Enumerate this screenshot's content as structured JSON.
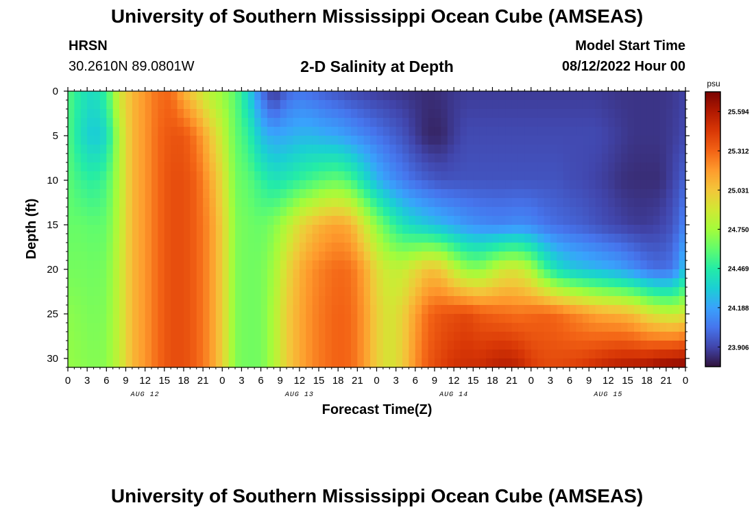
{
  "header": {
    "title": "University of Southern Mississippi Ocean Cube (AMSEAS)",
    "station": "HRSN",
    "coords": "30.2610N  89.0801W",
    "subtitle": "2-D Salinity at Depth",
    "start_label": "Model Start Time",
    "start_value": "08/12/2022 Hour 00"
  },
  "footer": {
    "title": "University of Southern Mississippi Ocean Cube (AMSEAS)"
  },
  "chart_data": {
    "type": "heatmap",
    "title": "2-D Salinity at Depth",
    "xlabel": "Forecast Time(Z)",
    "ylabel": "Depth (ft)",
    "x_range_hours": [
      0,
      96
    ],
    "y_range_ft": [
      0,
      31
    ],
    "y_inverted": true,
    "x_ticks": [
      {
        "hour": 0,
        "label": "0"
      },
      {
        "hour": 3,
        "label": "3"
      },
      {
        "hour": 6,
        "label": "6"
      },
      {
        "hour": 9,
        "label": "9"
      },
      {
        "hour": 12,
        "label": "12"
      },
      {
        "hour": 15,
        "label": "15"
      },
      {
        "hour": 18,
        "label": "18"
      },
      {
        "hour": 21,
        "label": "21"
      },
      {
        "hour": 24,
        "label": "0"
      },
      {
        "hour": 27,
        "label": "3"
      },
      {
        "hour": 30,
        "label": "6"
      },
      {
        "hour": 33,
        "label": "9"
      },
      {
        "hour": 36,
        "label": "12"
      },
      {
        "hour": 39,
        "label": "15"
      },
      {
        "hour": 42,
        "label": "18"
      },
      {
        "hour": 45,
        "label": "21"
      },
      {
        "hour": 48,
        "label": "0"
      },
      {
        "hour": 51,
        "label": "3"
      },
      {
        "hour": 54,
        "label": "6"
      },
      {
        "hour": 57,
        "label": "9"
      },
      {
        "hour": 60,
        "label": "12"
      },
      {
        "hour": 63,
        "label": "15"
      },
      {
        "hour": 66,
        "label": "18"
      },
      {
        "hour": 69,
        "label": "21"
      },
      {
        "hour": 72,
        "label": "0"
      },
      {
        "hour": 75,
        "label": "3"
      },
      {
        "hour": 78,
        "label": "6"
      },
      {
        "hour": 81,
        "label": "9"
      },
      {
        "hour": 84,
        "label": "12"
      },
      {
        "hour": 87,
        "label": "15"
      },
      {
        "hour": 90,
        "label": "18"
      },
      {
        "hour": 93,
        "label": "21"
      },
      {
        "hour": 96,
        "label": "0"
      }
    ],
    "date_labels": [
      {
        "hour": 12,
        "label": "AUG 12"
      },
      {
        "hour": 36,
        "label": "AUG 13"
      },
      {
        "hour": 60,
        "label": "AUG 14"
      },
      {
        "hour": 84,
        "label": "AUG 15"
      }
    ],
    "y_ticks": [
      0,
      5,
      10,
      15,
      20,
      25,
      30
    ],
    "colorbar": {
      "unit": "psu",
      "min": 23.765,
      "max": 25.735,
      "ticks": [
        25.594,
        25.312,
        25.031,
        24.75,
        24.469,
        24.188,
        23.906
      ],
      "tick_labels": [
        "25.594",
        "25.312",
        "25.031",
        "24.750",
        "24.469",
        "24.188",
        "23.906"
      ],
      "colormap": [
        "#30123b",
        "#4145ab",
        "#4675ed",
        "#39a2fc",
        "#1bcfd4",
        "#24eca6",
        "#61fc6c",
        "#a4fc3b",
        "#d1e834",
        "#f3c63a",
        "#fe9b2d",
        "#f36315",
        "#d93806",
        "#b11901",
        "#7a0402"
      ]
    },
    "value_description": "Salinity (psu) by forecast hour (rows) and depth in ft (columns)",
    "depths_ft": [
      0,
      5,
      10,
      15,
      20,
      25,
      31
    ],
    "profiles": [
      {
        "hour": 0,
        "values": [
          24.58,
          24.58,
          24.6,
          24.62,
          24.65,
          24.7,
          24.72
        ]
      },
      {
        "hour": 2,
        "values": [
          24.45,
          24.4,
          24.52,
          24.62,
          24.65,
          24.68,
          24.7
        ]
      },
      {
        "hour": 4,
        "values": [
          24.38,
          24.3,
          24.48,
          24.6,
          24.64,
          24.66,
          24.68
        ]
      },
      {
        "hour": 6,
        "values": [
          24.52,
          24.38,
          24.55,
          24.62,
          24.66,
          24.68,
          24.7
        ]
      },
      {
        "hour": 8,
        "values": [
          24.9,
          24.8,
          24.8,
          24.82,
          24.85,
          24.85,
          24.85
        ]
      },
      {
        "hour": 10,
        "values": [
          25.08,
          25.08,
          25.08,
          25.08,
          25.08,
          25.08,
          25.08
        ]
      },
      {
        "hour": 12,
        "values": [
          25.18,
          25.18,
          25.18,
          25.18,
          25.18,
          25.18,
          25.18
        ]
      },
      {
        "hour": 14,
        "values": [
          25.28,
          25.3,
          25.3,
          25.3,
          25.3,
          25.3,
          25.3
        ]
      },
      {
        "hour": 16,
        "values": [
          25.3,
          25.36,
          25.38,
          25.38,
          25.38,
          25.38,
          25.38
        ]
      },
      {
        "hour": 18,
        "values": [
          25.1,
          25.36,
          25.38,
          25.38,
          25.38,
          25.38,
          25.38
        ]
      },
      {
        "hour": 20,
        "values": [
          24.95,
          25.25,
          25.32,
          25.32,
          25.32,
          25.32,
          25.32
        ]
      },
      {
        "hour": 22,
        "values": [
          24.8,
          25.05,
          25.15,
          25.2,
          25.2,
          25.2,
          25.2
        ]
      },
      {
        "hour": 24,
        "values": [
          24.72,
          24.85,
          24.95,
          25.0,
          25.0,
          25.0,
          25.0
        ]
      },
      {
        "hour": 26,
        "values": [
          24.6,
          24.62,
          24.65,
          24.68,
          24.68,
          24.68,
          24.68
        ]
      },
      {
        "hour": 28,
        "values": [
          24.35,
          24.5,
          24.6,
          24.64,
          24.64,
          24.64,
          24.64
        ]
      },
      {
        "hour": 30,
        "values": [
          24.05,
          24.28,
          24.5,
          24.62,
          24.65,
          24.65,
          24.65
        ]
      },
      {
        "hour": 32,
        "values": [
          23.85,
          24.2,
          24.42,
          24.68,
          24.75,
          24.78,
          24.78
        ]
      },
      {
        "hour": 34,
        "values": [
          24.0,
          24.22,
          24.45,
          24.8,
          24.95,
          25.0,
          25.0
        ]
      },
      {
        "hour": 36,
        "values": [
          24.05,
          24.25,
          24.5,
          24.95,
          25.1,
          25.12,
          25.12
        ]
      },
      {
        "hour": 38,
        "values": [
          24.02,
          24.25,
          24.55,
          25.05,
          25.2,
          25.22,
          25.22
        ]
      },
      {
        "hour": 40,
        "values": [
          23.98,
          24.22,
          24.6,
          25.12,
          25.26,
          25.28,
          25.28
        ]
      },
      {
        "hour": 42,
        "values": [
          23.95,
          24.2,
          24.62,
          25.15,
          25.3,
          25.32,
          25.32
        ]
      },
      {
        "hour": 44,
        "values": [
          23.92,
          24.15,
          24.55,
          25.1,
          25.28,
          25.3,
          25.3
        ]
      },
      {
        "hour": 46,
        "values": [
          23.9,
          24.1,
          24.4,
          24.9,
          25.15,
          25.18,
          25.18
        ]
      },
      {
        "hour": 48,
        "values": [
          23.88,
          24.05,
          24.25,
          24.7,
          24.95,
          25.0,
          25.0
        ]
      },
      {
        "hour": 50,
        "values": [
          23.87,
          24.0,
          24.15,
          24.55,
          24.85,
          24.9,
          24.9
        ]
      },
      {
        "hour": 52,
        "values": [
          23.86,
          23.95,
          24.08,
          24.42,
          24.85,
          24.98,
          25.0
        ]
      },
      {
        "hour": 54,
        "values": [
          23.85,
          23.88,
          24.02,
          24.35,
          24.95,
          25.15,
          25.2
        ]
      },
      {
        "hour": 56,
        "values": [
          23.84,
          23.82,
          23.98,
          24.3,
          25.05,
          25.3,
          25.35
        ]
      },
      {
        "hour": 58,
        "values": [
          23.85,
          23.82,
          23.95,
          24.25,
          25.02,
          25.36,
          25.42
        ]
      },
      {
        "hour": 60,
        "values": [
          23.87,
          23.88,
          23.95,
          24.2,
          24.85,
          25.38,
          25.48
        ]
      },
      {
        "hour": 62,
        "values": [
          23.88,
          23.92,
          23.95,
          24.15,
          24.72,
          25.4,
          25.5
        ]
      },
      {
        "hour": 64,
        "values": [
          23.88,
          23.92,
          23.95,
          24.12,
          24.7,
          25.35,
          25.5
        ]
      },
      {
        "hour": 66,
        "values": [
          23.88,
          23.92,
          23.95,
          24.1,
          24.8,
          25.32,
          25.55
        ]
      },
      {
        "hour": 68,
        "values": [
          23.88,
          23.92,
          23.95,
          24.1,
          24.9,
          25.3,
          25.58
        ]
      },
      {
        "hour": 70,
        "values": [
          23.88,
          23.92,
          23.95,
          24.12,
          24.9,
          25.28,
          25.55
        ]
      },
      {
        "hour": 72,
        "values": [
          23.88,
          23.92,
          23.95,
          24.1,
          24.78,
          25.3,
          25.45
        ]
      },
      {
        "hour": 74,
        "values": [
          23.88,
          23.92,
          23.95,
          24.05,
          24.55,
          25.32,
          25.4
        ]
      },
      {
        "hour": 76,
        "values": [
          23.88,
          23.92,
          23.95,
          24.02,
          24.4,
          25.3,
          25.4
        ]
      },
      {
        "hour": 78,
        "values": [
          23.88,
          23.92,
          23.93,
          24.0,
          24.32,
          25.25,
          25.42
        ]
      },
      {
        "hour": 80,
        "values": [
          23.88,
          23.92,
          23.92,
          23.98,
          24.28,
          25.2,
          25.45
        ]
      },
      {
        "hour": 82,
        "values": [
          23.88,
          23.92,
          23.9,
          23.95,
          24.25,
          25.15,
          25.5
        ]
      },
      {
        "hour": 84,
        "values": [
          23.87,
          23.9,
          23.88,
          23.92,
          24.22,
          25.12,
          25.55
        ]
      },
      {
        "hour": 86,
        "values": [
          23.86,
          23.88,
          23.85,
          23.9,
          24.18,
          25.1,
          25.58
        ]
      },
      {
        "hour": 88,
        "values": [
          23.86,
          23.86,
          23.84,
          23.88,
          24.12,
          25.05,
          25.6
        ]
      },
      {
        "hour": 90,
        "values": [
          23.86,
          23.86,
          23.84,
          23.88,
          24.05,
          24.95,
          25.62
        ]
      },
      {
        "hour": 92,
        "values": [
          23.86,
          23.86,
          23.84,
          23.9,
          24.02,
          24.88,
          25.68
        ]
      },
      {
        "hour": 94,
        "values": [
          23.87,
          23.88,
          23.9,
          23.95,
          24.05,
          24.85,
          25.7
        ]
      },
      {
        "hour": 96,
        "values": [
          23.9,
          23.92,
          24.0,
          24.1,
          24.3,
          24.9,
          25.72
        ]
      }
    ]
  }
}
